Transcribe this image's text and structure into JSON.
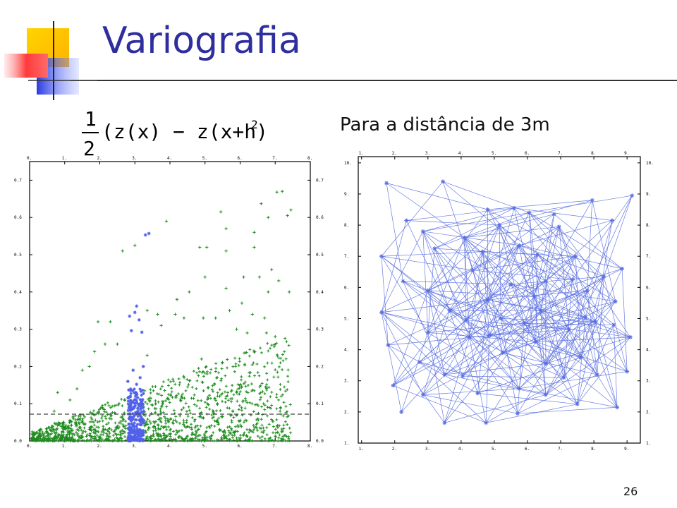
{
  "slide": {
    "title": "Variografia",
    "subtitle": "Para a distância de 3m",
    "page_number": "26",
    "formula": "1/2 (z(x) − z(x+h))²",
    "colors": {
      "title": "#2e2e9e",
      "green_points": "#1e8c1e",
      "blue_points": "#5060e8",
      "network": "#5a6fe0"
    }
  },
  "chart_data": [
    {
      "type": "scatter",
      "title": "",
      "xlabel": "",
      "ylabel": "",
      "xlim": [
        0,
        8
      ],
      "ylim": [
        0,
        0.75
      ],
      "x_ticks": [
        "0.",
        "1.",
        "2.",
        "3.",
        "4.",
        "5.",
        "6.",
        "7.",
        "8."
      ],
      "y_ticks": [
        "0.0",
        "0.1",
        "0.2",
        "0.3",
        "0.4",
        "0.5",
        "0.6",
        "0.7"
      ],
      "reference_line_y": 0.072,
      "highlight_x_range": [
        2.75,
        3.25
      ],
      "highlight_points": [
        {
          "x": 3.3,
          "y": 0.553
        },
        {
          "x": 3.4,
          "y": 0.557
        },
        {
          "x": 3.05,
          "y": 0.362
        },
        {
          "x": 3.0,
          "y": 0.345
        },
        {
          "x": 2.85,
          "y": 0.335
        },
        {
          "x": 3.12,
          "y": 0.325
        },
        {
          "x": 2.9,
          "y": 0.296
        },
        {
          "x": 3.2,
          "y": 0.292
        },
        {
          "x": 3.24,
          "y": 0.2
        },
        {
          "x": 2.95,
          "y": 0.19
        },
        {
          "x": 3.15,
          "y": 0.17
        },
        {
          "x": 2.8,
          "y": 0.16
        },
        {
          "x": 3.05,
          "y": 0.152
        }
      ],
      "green_points": [
        {
          "x": 7.05,
          "y": 0.668
        },
        {
          "x": 7.2,
          "y": 0.67
        },
        {
          "x": 6.6,
          "y": 0.637
        },
        {
          "x": 5.45,
          "y": 0.615
        },
        {
          "x": 7.45,
          "y": 0.62
        },
        {
          "x": 7.35,
          "y": 0.605
        },
        {
          "x": 6.8,
          "y": 0.6
        },
        {
          "x": 3.9,
          "y": 0.59
        },
        {
          "x": 5.6,
          "y": 0.57
        },
        {
          "x": 6.4,
          "y": 0.56
        },
        {
          "x": 3.0,
          "y": 0.525
        },
        {
          "x": 2.65,
          "y": 0.51
        },
        {
          "x": 5.6,
          "y": 0.51
        },
        {
          "x": 6.4,
          "y": 0.52
        },
        {
          "x": 4.85,
          "y": 0.52
        },
        {
          "x": 5.05,
          "y": 0.52
        },
        {
          "x": 6.9,
          "y": 0.46
        },
        {
          "x": 6.55,
          "y": 0.44
        },
        {
          "x": 7.1,
          "y": 0.43
        },
        {
          "x": 6.1,
          "y": 0.44
        },
        {
          "x": 5.0,
          "y": 0.44
        },
        {
          "x": 4.55,
          "y": 0.4
        },
        {
          "x": 5.6,
          "y": 0.41
        },
        {
          "x": 6.8,
          "y": 0.4
        },
        {
          "x": 7.4,
          "y": 0.4
        },
        {
          "x": 4.2,
          "y": 0.38
        },
        {
          "x": 6.05,
          "y": 0.37
        },
        {
          "x": 3.35,
          "y": 0.35
        },
        {
          "x": 3.65,
          "y": 0.34
        },
        {
          "x": 4.15,
          "y": 0.34
        },
        {
          "x": 4.4,
          "y": 0.33
        },
        {
          "x": 4.95,
          "y": 0.33
        },
        {
          "x": 5.3,
          "y": 0.33
        },
        {
          "x": 5.7,
          "y": 0.35
        },
        {
          "x": 6.35,
          "y": 0.34
        },
        {
          "x": 6.7,
          "y": 0.33
        },
        {
          "x": 1.95,
          "y": 0.32
        },
        {
          "x": 2.3,
          "y": 0.32
        },
        {
          "x": 3.75,
          "y": 0.31
        },
        {
          "x": 5.9,
          "y": 0.3
        },
        {
          "x": 6.2,
          "y": 0.29
        },
        {
          "x": 6.75,
          "y": 0.29
        },
        {
          "x": 7.0,
          "y": 0.28
        },
        {
          "x": 2.15,
          "y": 0.26
        },
        {
          "x": 2.5,
          "y": 0.26
        },
        {
          "x": 1.85,
          "y": 0.24
        },
        {
          "x": 3.35,
          "y": 0.23
        },
        {
          "x": 4.9,
          "y": 0.22
        },
        {
          "x": 1.5,
          "y": 0.19
        },
        {
          "x": 1.7,
          "y": 0.2
        },
        {
          "x": 1.35,
          "y": 0.14
        },
        {
          "x": 0.8,
          "y": 0.13
        },
        {
          "x": 1.15,
          "y": 0.11
        },
        {
          "x": 0.7,
          "y": 0.08
        }
      ],
      "dense_cloud_note": ""
    },
    {
      "type": "scatter",
      "title": "",
      "xlabel": "",
      "ylabel": "",
      "xlim": [
        0.9,
        9.4
      ],
      "ylim": [
        1.0,
        10.2
      ],
      "x_ticks": [
        "1.",
        "2.",
        "3.",
        "4.",
        "5.",
        "6.",
        "7.",
        "8.",
        "9."
      ],
      "y_ticks": [
        "1.",
        "2.",
        "3.",
        "4.",
        "5.",
        "6.",
        "7.",
        "8.",
        "9.",
        "10."
      ],
      "points": [
        {
          "x": 1.75,
          "y": 9.35
        },
        {
          "x": 3.45,
          "y": 9.4
        },
        {
          "x": 9.15,
          "y": 8.95
        },
        {
          "x": 4.8,
          "y": 8.5
        },
        {
          "x": 5.6,
          "y": 8.55
        },
        {
          "x": 6.05,
          "y": 8.4
        },
        {
          "x": 6.8,
          "y": 8.35
        },
        {
          "x": 7.95,
          "y": 8.8
        },
        {
          "x": 2.35,
          "y": 8.15
        },
        {
          "x": 2.85,
          "y": 7.8
        },
        {
          "x": 5.15,
          "y": 8.0
        },
        {
          "x": 4.1,
          "y": 7.6
        },
        {
          "x": 6.95,
          "y": 7.95
        },
        {
          "x": 8.55,
          "y": 8.15
        },
        {
          "x": 1.6,
          "y": 7.0
        },
        {
          "x": 3.2,
          "y": 7.25
        },
        {
          "x": 4.65,
          "y": 7.15
        },
        {
          "x": 5.75,
          "y": 7.35
        },
        {
          "x": 6.3,
          "y": 7.05
        },
        {
          "x": 7.45,
          "y": 7.0
        },
        {
          "x": 4.35,
          "y": 6.55
        },
        {
          "x": 2.25,
          "y": 6.2
        },
        {
          "x": 3.0,
          "y": 5.9
        },
        {
          "x": 5.5,
          "y": 6.1
        },
        {
          "x": 6.55,
          "y": 6.2
        },
        {
          "x": 7.35,
          "y": 6.25
        },
        {
          "x": 8.3,
          "y": 6.35
        },
        {
          "x": 8.85,
          "y": 6.6
        },
        {
          "x": 4.8,
          "y": 5.6
        },
        {
          "x": 6.2,
          "y": 5.7
        },
        {
          "x": 7.8,
          "y": 5.9
        },
        {
          "x": 8.65,
          "y": 5.55
        },
        {
          "x": 1.6,
          "y": 5.2
        },
        {
          "x": 3.65,
          "y": 5.25
        },
        {
          "x": 4.15,
          "y": 4.95
        },
        {
          "x": 5.2,
          "y": 5.0
        },
        {
          "x": 5.9,
          "y": 4.85
        },
        {
          "x": 6.4,
          "y": 5.25
        },
        {
          "x": 7.75,
          "y": 5.05
        },
        {
          "x": 8.05,
          "y": 4.9
        },
        {
          "x": 3.0,
          "y": 4.55
        },
        {
          "x": 4.25,
          "y": 4.4
        },
        {
          "x": 4.85,
          "y": 4.45
        },
        {
          "x": 6.25,
          "y": 4.25
        },
        {
          "x": 7.25,
          "y": 4.65
        },
        {
          "x": 8.6,
          "y": 4.8
        },
        {
          "x": 9.1,
          "y": 4.4
        },
        {
          "x": 1.8,
          "y": 4.15
        },
        {
          "x": 5.25,
          "y": 3.9
        },
        {
          "x": 7.6,
          "y": 3.75
        },
        {
          "x": 2.75,
          "y": 3.6
        },
        {
          "x": 3.5,
          "y": 3.2
        },
        {
          "x": 4.05,
          "y": 3.15
        },
        {
          "x": 6.55,
          "y": 3.55
        },
        {
          "x": 7.1,
          "y": 3.1
        },
        {
          "x": 8.1,
          "y": 3.2
        },
        {
          "x": 9.0,
          "y": 3.3
        },
        {
          "x": 1.95,
          "y": 2.85
        },
        {
          "x": 2.85,
          "y": 2.55
        },
        {
          "x": 4.5,
          "y": 2.6
        },
        {
          "x": 5.75,
          "y": 2.75
        },
        {
          "x": 6.55,
          "y": 2.55
        },
        {
          "x": 2.2,
          "y": 2.0
        },
        {
          "x": 3.5,
          "y": 1.65
        },
        {
          "x": 4.75,
          "y": 1.65
        },
        {
          "x": 5.7,
          "y": 1.95
        },
        {
          "x": 7.5,
          "y": 2.25
        },
        {
          "x": 8.7,
          "y": 2.15
        }
      ],
      "links_to_neighbors_within": 3
    }
  ]
}
